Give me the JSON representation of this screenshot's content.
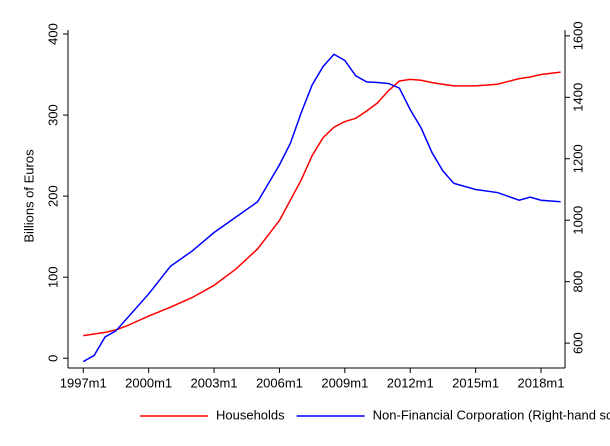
{
  "chart_data": {
    "type": "line",
    "y_label": "Billions of Euros",
    "x": [
      1997,
      1997.5,
      1998,
      1998.5,
      1999,
      2000,
      2001,
      2002,
      2003,
      2004,
      2005,
      2006,
      2006.5,
      2007,
      2007.5,
      2008,
      2008.5,
      2009,
      2009.5,
      2010,
      2010.5,
      2011,
      2011.5,
      2012,
      2012.5,
      2013,
      2013.5,
      2014,
      2015,
      2016,
      2017,
      2017.5,
      2018,
      2018.9
    ],
    "series": [
      {
        "name": "Households",
        "color": "#ff0000",
        "axis": "y",
        "values": [
          28,
          30,
          32,
          35,
          40,
          52,
          63,
          75,
          90,
          110,
          135,
          170,
          195,
          220,
          250,
          272,
          285,
          292,
          296,
          305,
          315,
          330,
          342,
          344,
          343,
          340,
          338,
          336,
          336,
          338,
          345,
          347,
          350,
          353
        ]
      },
      {
        "name": "Non-Financial Corporation (Right-hand scale)",
        "color": "#0000ff",
        "axis": "y2",
        "values": [
          540,
          560,
          620,
          640,
          680,
          760,
          850,
          900,
          960,
          1010,
          1060,
          1180,
          1250,
          1350,
          1440,
          1500,
          1540,
          1520,
          1470,
          1450,
          1448,
          1445,
          1430,
          1360,
          1300,
          1220,
          1160,
          1120,
          1100,
          1090,
          1065,
          1075,
          1065,
          1060
        ]
      }
    ],
    "xlim": [
      1996.3,
      2019.1
    ],
    "xticks": [
      {
        "value": 1997,
        "label": "1997m1"
      },
      {
        "value": 2000,
        "label": "2000m1"
      },
      {
        "value": 2003,
        "label": "2003m1"
      },
      {
        "value": 2006,
        "label": "2006m1"
      },
      {
        "value": 2009,
        "label": "2009m1"
      },
      {
        "value": 2012,
        "label": "2012m1"
      },
      {
        "value": 2015,
        "label": "2015m1"
      },
      {
        "value": 2018,
        "label": "2018m1"
      }
    ],
    "ylim": [
      -12,
      400
    ],
    "yticks": [
      0,
      100,
      200,
      300,
      400
    ],
    "y2lim": [
      519,
      1606
    ],
    "y2ticks": [
      600,
      800,
      1000,
      1200,
      1400,
      1600
    ],
    "legend": "bottom"
  }
}
